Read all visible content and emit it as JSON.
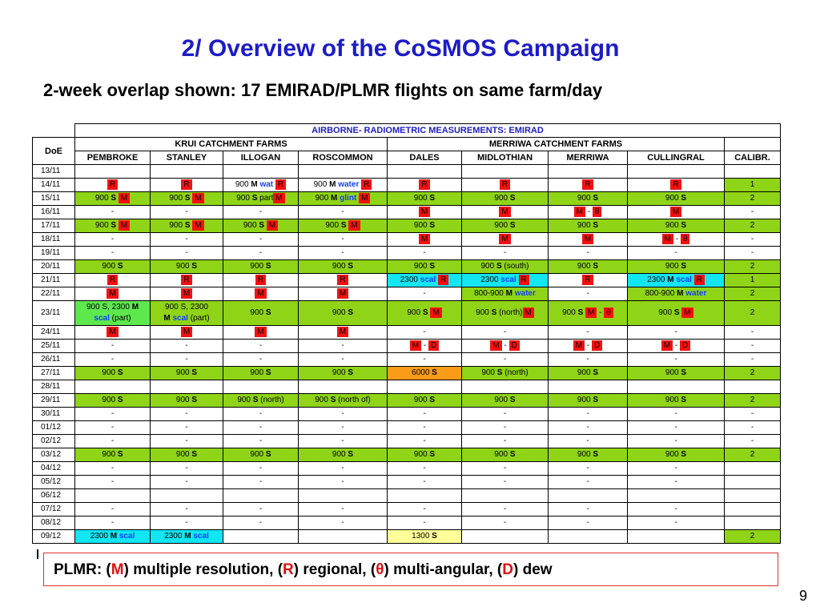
{
  "title": {
    "number": "2/",
    "text": "Overview of the CoSMOS Campaign"
  },
  "subtitle": "2-week overlap shown:  17 EMIRAD/PLMR flights on same farm/day",
  "table": {
    "banner": "AIRBORNE- RADIOMETRIC MEASUREMENTS: EMIRAD",
    "doe_header": "DoE",
    "group_krui": "KRUI CATCHMENT FARMS",
    "group_merriwa": "MERRIWA CATCHMENT FARMS",
    "columns": [
      "PEMBROKE",
      "STANLEY",
      "ILLOGAN",
      "ROSCOMMON",
      "DALES",
      "MIDLOTHIAN",
      "MERRIWA",
      "CULLINGRAL",
      "CALIBR."
    ]
  },
  "rows_text": {
    "dates": [
      "13/11",
      "14/11",
      "15/11",
      "16/11",
      "17/11",
      "18/11",
      "19/11",
      "20/11",
      "21/11",
      "22/11",
      "23/11",
      "24/11",
      "25/11",
      "26/11",
      "27/11",
      "28/11",
      "29/11",
      "30/11",
      "01/12",
      "02/12",
      "03/12",
      "04/12",
      "05/12",
      "06/12",
      "07/12",
      "08/12",
      "09/12"
    ],
    "R": "R",
    "M": "M",
    "S": "S",
    "D": "D",
    "theta": "θ",
    "dash": "-",
    "n900": "900",
    "n2300": "2300",
    "n6000": "6000",
    "n1300": "1300",
    "n800_900": "800-900",
    "one": "1",
    "two": "2",
    "wat": "wat",
    "water": "water",
    "part": "part",
    "glint": "glint",
    "scal": "scal",
    "south": "(south)",
    "north": "(north)",
    "north_of": "(north of)",
    "paren_part": "(part)",
    "n900S_2300": "900 S, 2300",
    "n900S2300": "900 S, 2300",
    "n900M": "900 M"
  },
  "legend": {
    "prefix": "PLMR: (",
    "M": "M",
    "m_text": ") multiple resolution, (",
    "R": "R",
    "r_text": ") regional, (",
    "theta": "θ",
    "t_text": ") multi-angular, (",
    "D": "D",
    "d_text": ") dew"
  },
  "page_number": "9",
  "colors": {
    "title": "#1c1cc8",
    "green": "#8fd416",
    "cyan": "#12e6f2",
    "orange": "#fa9c18",
    "red": "#f70f0f",
    "yellow": "#ffff99"
  }
}
